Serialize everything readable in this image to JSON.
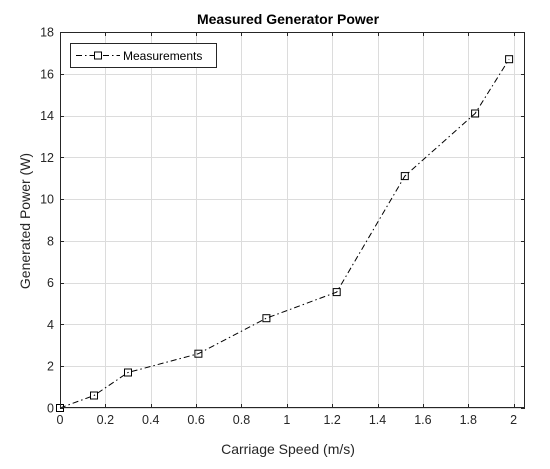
{
  "chart_data": {
    "type": "line",
    "title": "Measured Generator Power",
    "xlabel": "Carriage Speed (m/s)",
    "ylabel": "Generated Power (W)",
    "xlim": [
      0,
      2.05
    ],
    "ylim": [
      0,
      18
    ],
    "xticks": [
      0,
      0.2,
      0.4,
      0.6,
      0.8,
      1,
      1.2,
      1.4,
      1.6,
      1.8,
      2
    ],
    "xtick_labels": [
      "0",
      "0.2",
      "0.4",
      "0.6",
      "0.8",
      "1",
      "1.2",
      "1.4",
      "1.6",
      "1.8",
      "2"
    ],
    "yticks": [
      0,
      2,
      4,
      6,
      8,
      10,
      12,
      14,
      16,
      18
    ],
    "ytick_labels": [
      "0",
      "2",
      "4",
      "6",
      "8",
      "10",
      "12",
      "14",
      "16",
      "18"
    ],
    "grid": true,
    "legend_position": "top-left",
    "series": [
      {
        "name": "Measurements",
        "line_style": "dash-dot",
        "marker": "square",
        "color": "#000000",
        "x": [
          0,
          0.15,
          0.3,
          0.61,
          0.91,
          1.22,
          1.52,
          1.83,
          1.98
        ],
        "y": [
          0,
          0.6,
          1.7,
          2.6,
          4.3,
          5.55,
          11.1,
          14.1,
          16.7
        ]
      }
    ]
  }
}
